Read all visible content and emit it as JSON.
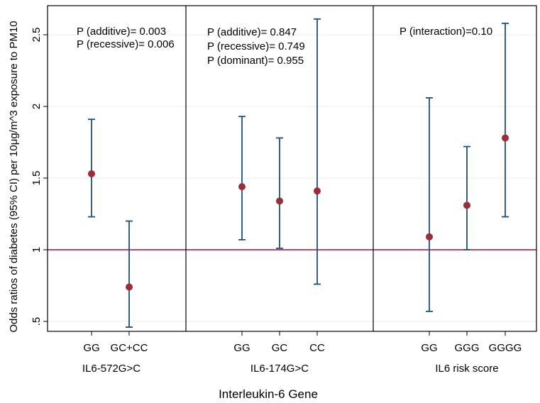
{
  "chart_data": {
    "type": "scatter",
    "subtype": "point-estimate with 95% CI error bars",
    "title": "",
    "xlabel": "Interleukin-6 Gene",
    "ylabel": "Odds ratios of diabetes (95% CI) per 10μg/m^3 exposure to PM10",
    "ylim": [
      0.45,
      2.72
    ],
    "yticks": [
      ".5",
      "1",
      "1.5",
      "2",
      "2.5"
    ],
    "ytick_values": [
      0.5,
      1,
      1.5,
      2,
      2.5
    ],
    "reference_line": {
      "y": 1,
      "color": "#a3123a"
    },
    "grid": true,
    "point_color": "#9b2d3a",
    "bar_color": "#1f4e79",
    "panels": [
      {
        "group": "IL6-572G>C",
        "annotations": [
          "P (additive)= 0.003",
          "P (recessive)= 0.006"
        ],
        "points": [
          {
            "category": "GG",
            "or": 1.53,
            "lower": 1.23,
            "upper": 1.91
          },
          {
            "category": "GC+CC",
            "or": 0.74,
            "lower": 0.46,
            "upper": 1.2
          }
        ]
      },
      {
        "group": "IL6-174G>C",
        "annotations": [
          "P (additive)= 0.847",
          "P (recessive)= 0.749",
          "P (dominant)= 0.955"
        ],
        "points": [
          {
            "category": "GG",
            "or": 1.44,
            "lower": 1.07,
            "upper": 1.93
          },
          {
            "category": "GC",
            "or": 1.34,
            "lower": 1.01,
            "upper": 1.78
          },
          {
            "category": "CC",
            "or": 1.41,
            "lower": 0.76,
            "upper": 2.61
          }
        ]
      },
      {
        "group": "IL6 risk score",
        "annotations": [
          "P (interaction)=0.10"
        ],
        "points": [
          {
            "category": "GG",
            "or": 1.09,
            "lower": 0.57,
            "upper": 2.06
          },
          {
            "category": "GGG",
            "or": 1.31,
            "lower": 1.0,
            "upper": 1.72
          },
          {
            "category": "GGGG",
            "or": 1.78,
            "lower": 1.23,
            "upper": 2.58
          }
        ]
      }
    ]
  }
}
